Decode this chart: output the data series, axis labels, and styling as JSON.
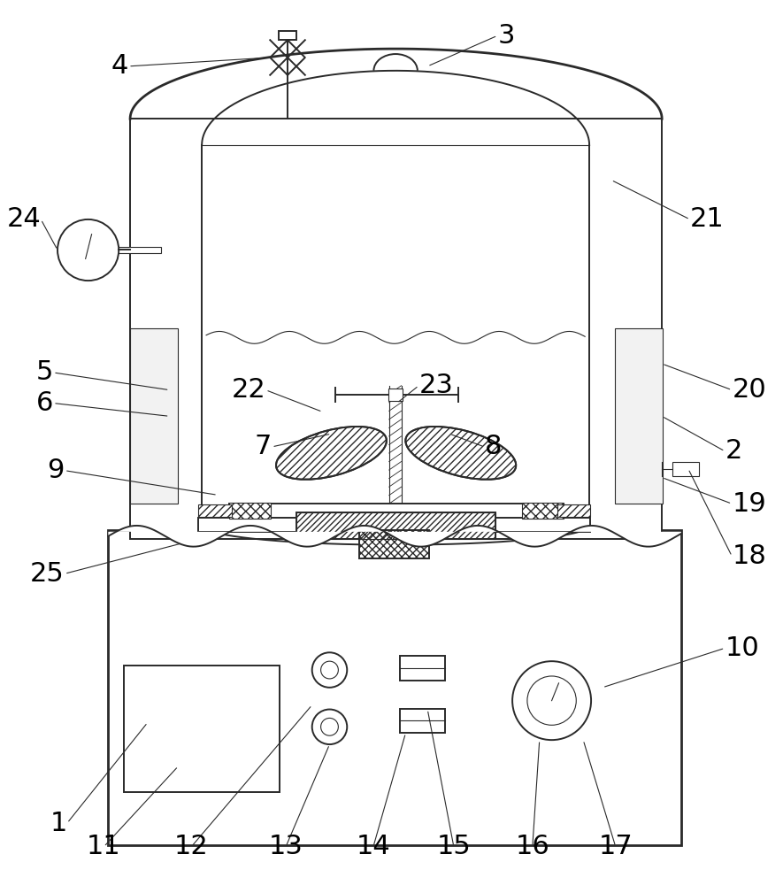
{
  "bg_color": "#ffffff",
  "line_color": "#2a2a2a",
  "fig_width": 8.85,
  "fig_height": 10.0,
  "lw_main": 1.4,
  "lw_thin": 0.8,
  "lw_thick": 2.0
}
